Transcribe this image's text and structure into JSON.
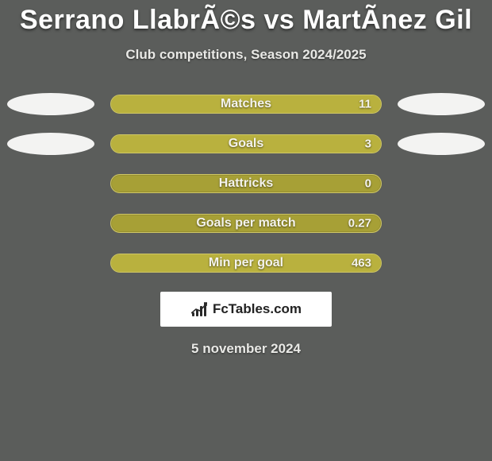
{
  "background_color": "#5b5d5b",
  "title": {
    "text": "Serrano LlabrÃ©s vs MartÃ­nez Gil",
    "color": "#ffffff",
    "fontsize": 34
  },
  "subtitle": {
    "text": "Club competitions, Season 2024/2025",
    "color": "#e9e9e6",
    "fontsize": 17
  },
  "ellipse_color": "#f3f3f2",
  "bar_bg_color": "#a7a036",
  "bar_fill_color": "#b9b13e",
  "bar_border_color": "#cfc766",
  "text_color": "#f4f3ed",
  "stats": [
    {
      "label": "Matches",
      "value": "11",
      "fill_pct": 100,
      "show_ellipses": true
    },
    {
      "label": "Goals",
      "value": "3",
      "fill_pct": 100,
      "show_ellipses": true
    },
    {
      "label": "Hattricks",
      "value": "0",
      "fill_pct": 0,
      "show_ellipses": false
    },
    {
      "label": "Goals per match",
      "value": "0.27",
      "fill_pct": 0,
      "show_ellipses": false
    },
    {
      "label": "Min per goal",
      "value": "463",
      "fill_pct": 100,
      "show_ellipses": false
    }
  ],
  "brand": {
    "bg_color": "#ffffff",
    "text": "FcTables.com",
    "text_color": "#222222"
  },
  "date": {
    "text": "5 november 2024",
    "color": "#e9e9e6"
  }
}
